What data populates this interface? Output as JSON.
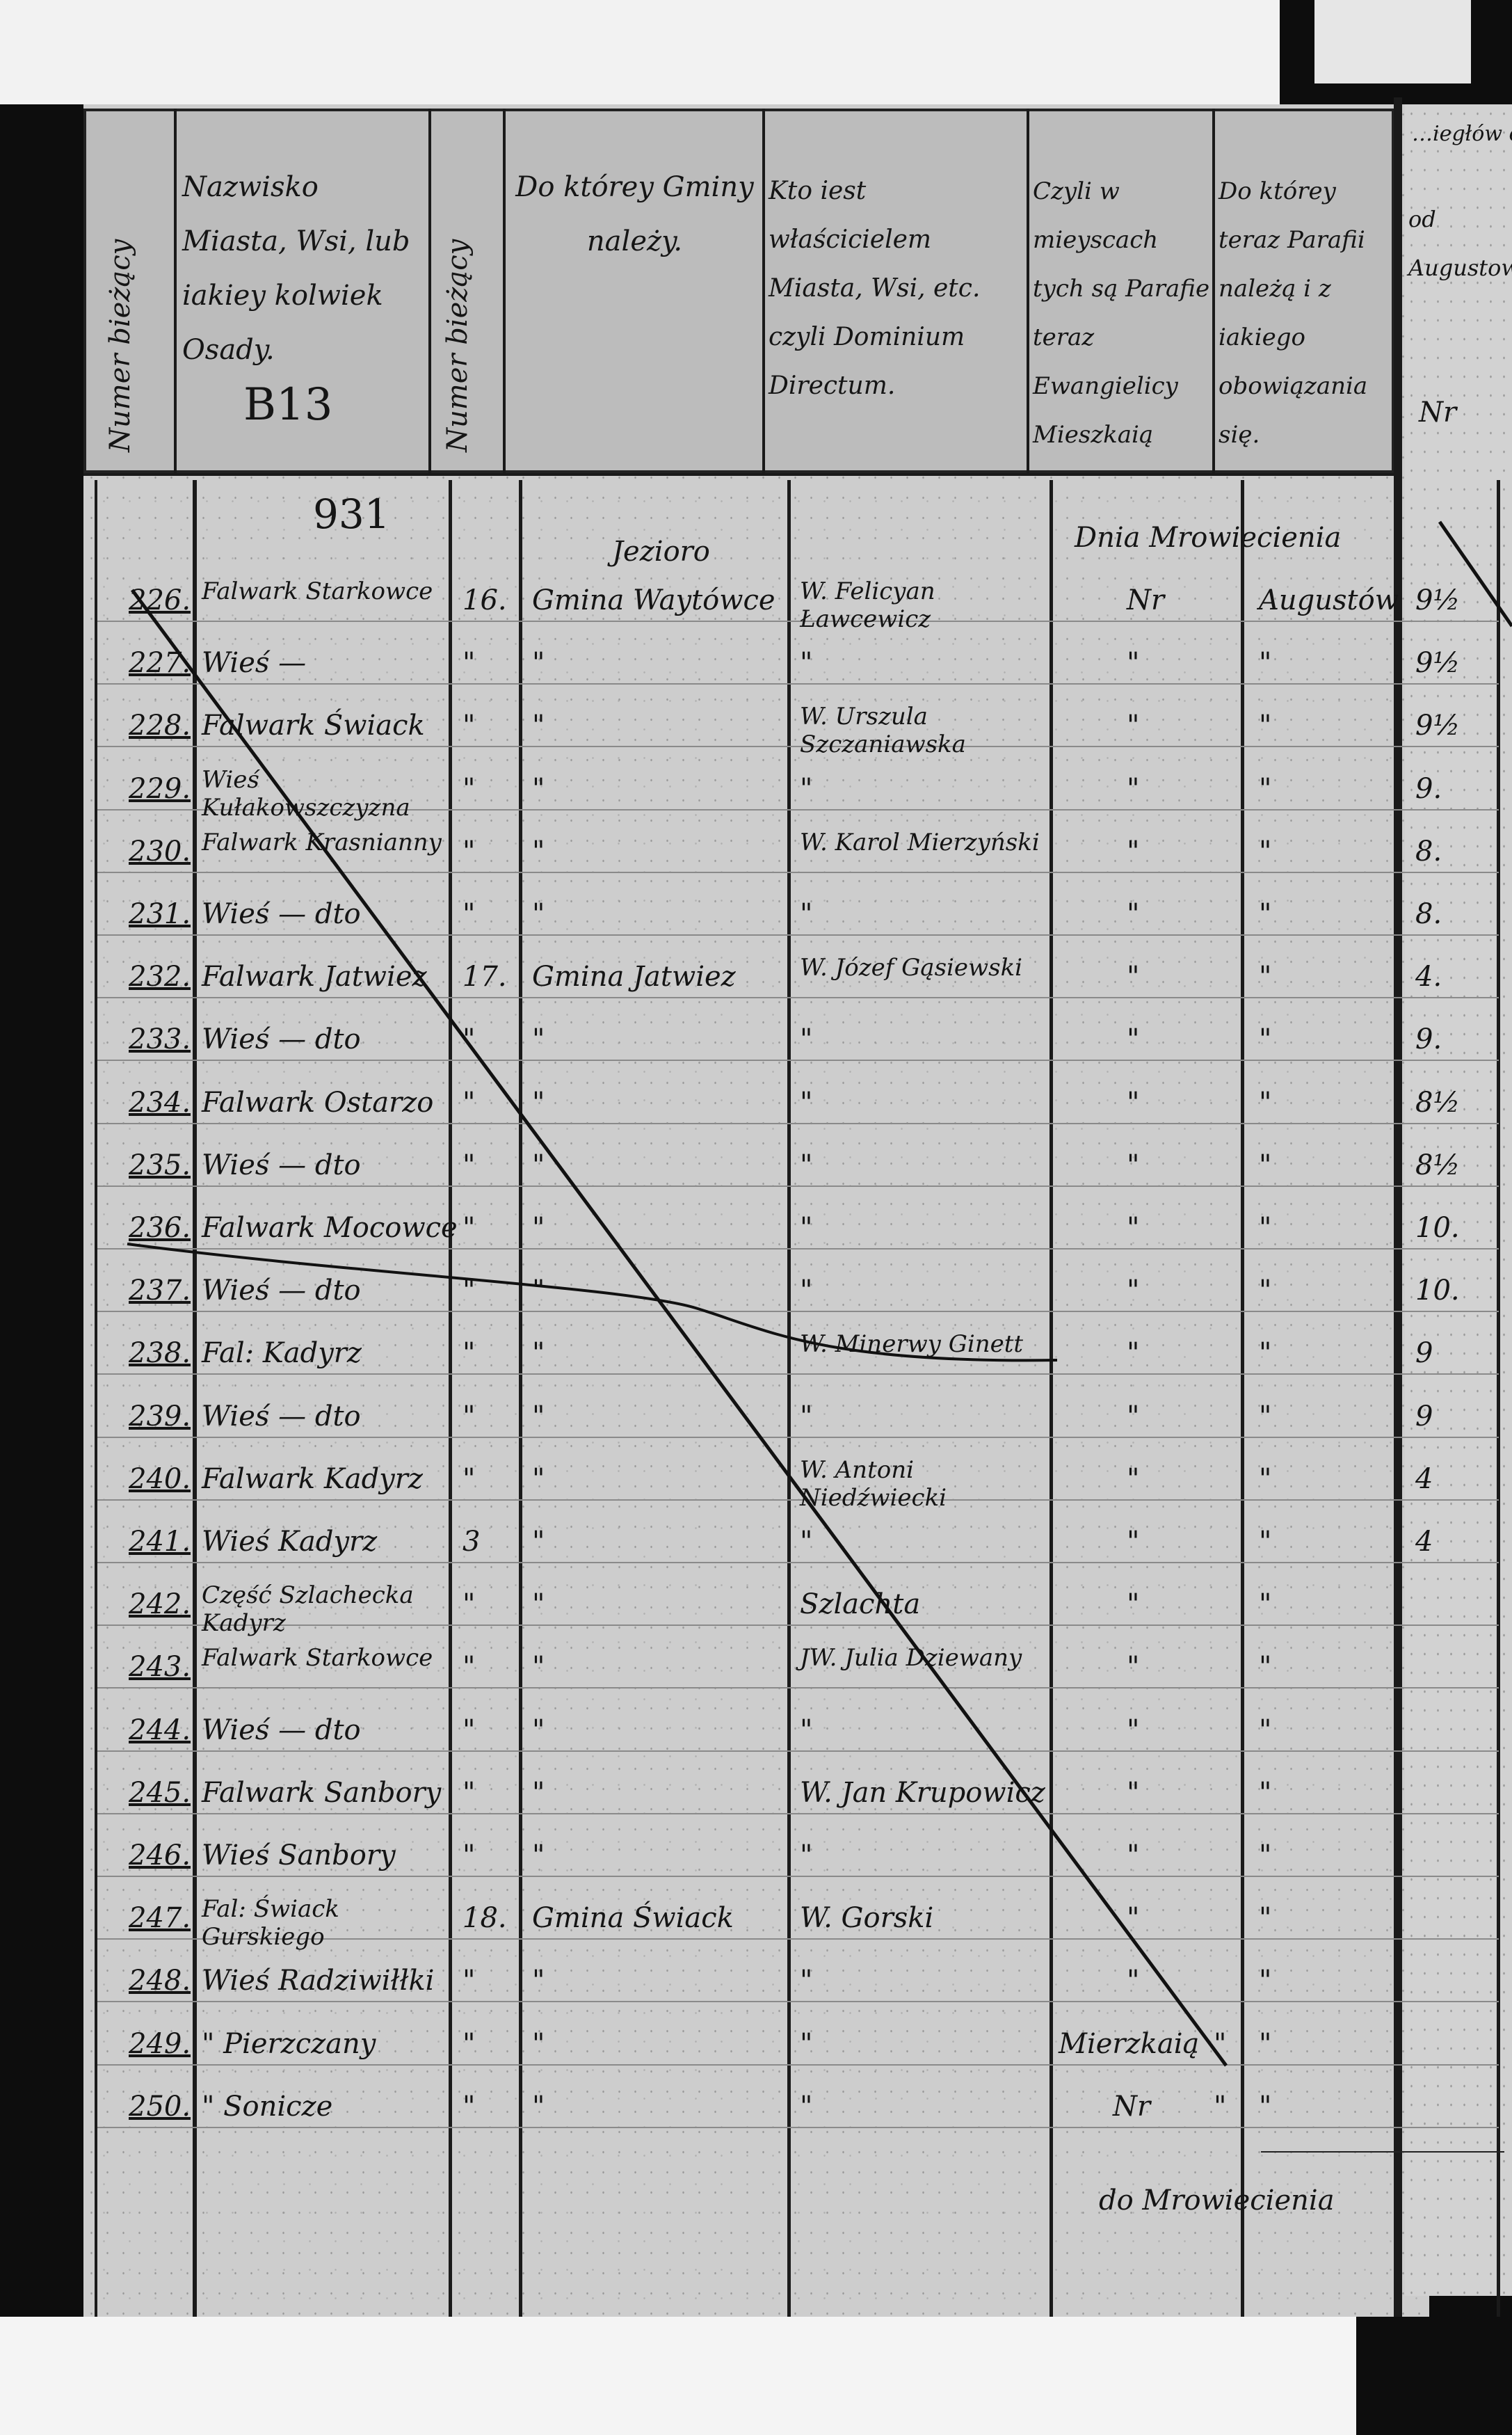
{
  "header": {
    "col_number": "Numer bieżący",
    "col_place": "Nazwisko Miasta, Wsi, lub iakiey kolwiek Osady.",
    "col_number2": "Numer bieżący",
    "col_gmina": "Do którey Gminy należy.",
    "col_owner": "Kto iest właścicielem Miasta, Wsi, etc. czyli Dominium Directum.",
    "col_evangelical": "Czyli w mieyscach tych są Parafie teraz Ewangielicy Mieszkaią",
    "col_parish": "Do którey teraz Parafii należą i z iakiego obowiązania się.",
    "stamp": "B13",
    "right_page_top": "…iegłów ob…",
    "right_page_mid": "od Augustowa",
    "right_page_nr": "Nr"
  },
  "annotations": {
    "page_number": "931",
    "lake_note": "Jezioro",
    "dnia_header": "Dnia Mrowiecienia",
    "bottom_mierzkaia": "Mierzkaią",
    "bottom_nr": "Nr",
    "bottom_do": "do Mrowiecienia"
  },
  "rows": [
    {
      "n": "226.",
      "place": "Falwark Starkowce",
      "c3": "16.",
      "gmina": "Gmina Waytówce",
      "owner": "W. Felicyan Ławcewicz",
      "nr": "Nr",
      "parish": "Augustów",
      "val": "9½"
    },
    {
      "n": "227.",
      "place": "Wieś —",
      "c3": "\"",
      "gmina": "\"",
      "owner": "\"",
      "nr": "\"",
      "parish": "\"",
      "val": "9½"
    },
    {
      "n": "228.",
      "place": "Falwark Świack",
      "c3": "\"",
      "gmina": "\"",
      "owner": "W. Urszula Szczaniawska",
      "nr": "\"",
      "parish": "\"",
      "val": "9½"
    },
    {
      "n": "229.",
      "place": "Wieś Kułakowszczyzna",
      "c3": "\"",
      "gmina": "\"",
      "owner": "\"",
      "nr": "\"",
      "parish": "\"",
      "val": "9."
    },
    {
      "n": "230.",
      "place": "Falwark Krasnianny",
      "c3": "\"",
      "gmina": "\"",
      "owner": "W. Karol Mierzyński",
      "nr": "\"",
      "parish": "\"",
      "val": "8."
    },
    {
      "n": "231.",
      "place": "Wieś — dto",
      "c3": "\"",
      "gmina": "\"",
      "owner": "\"",
      "nr": "\"",
      "parish": "\"",
      "val": "8."
    },
    {
      "n": "232.",
      "place": "Falwark Jatwiez",
      "c3": "17.",
      "gmina": "Gmina Jatwiez",
      "owner": "W. Józef Gąsiewski",
      "nr": "\"",
      "parish": "\"",
      "val": "4."
    },
    {
      "n": "233.",
      "place": "Wieś — dto",
      "c3": "\"",
      "gmina": "\"",
      "owner": "\"",
      "nr": "\"",
      "parish": "\"",
      "val": "9."
    },
    {
      "n": "234.",
      "place": "Falwark Ostarzo",
      "c3": "\"",
      "gmina": "\"",
      "owner": "\"",
      "nr": "\"",
      "parish": "\"",
      "val": "8½"
    },
    {
      "n": "235.",
      "place": "Wieś — dto",
      "c3": "\"",
      "gmina": "\"",
      "owner": "\"",
      "nr": "\"",
      "parish": "\"",
      "val": "8½"
    },
    {
      "n": "236.",
      "place": "Falwark Mocowce",
      "c3": "\"",
      "gmina": "\"",
      "owner": "\"",
      "nr": "\"",
      "parish": "\"",
      "val": "10."
    },
    {
      "n": "237.",
      "place": "Wieś — dto",
      "c3": "\"",
      "gmina": "\"",
      "owner": "\"",
      "nr": "\"",
      "parish": "\"",
      "val": "10."
    },
    {
      "n": "238.",
      "place": "Fal: Kadyrz",
      "c3": "\"",
      "gmina": "\"",
      "owner": "W. Minerwy Ginett",
      "nr": "\"",
      "parish": "\"",
      "val": "9"
    },
    {
      "n": "239.",
      "place": "Wieś — dto",
      "c3": "\"",
      "gmina": "\"",
      "owner": "\"",
      "nr": "\"",
      "parish": "\"",
      "val": "9"
    },
    {
      "n": "240.",
      "place": "Falwark Kadyrz",
      "c3": "\"",
      "gmina": "\"",
      "owner": "W. Antoni Niedźwiecki",
      "nr": "\"",
      "parish": "\"",
      "val": "4"
    },
    {
      "n": "241.",
      "place": "Wieś Kadyrz",
      "c3": "3",
      "gmina": "\"",
      "owner": "\"",
      "nr": "\"",
      "parish": "\"",
      "val": "4"
    },
    {
      "n": "242.",
      "place": "Część Szlachecka Kadyrz",
      "c3": "\"",
      "gmina": "\"",
      "owner": "Szlachta",
      "nr": "\"",
      "parish": "\"",
      "val": ""
    },
    {
      "n": "243.",
      "place": "Falwark Starkowce",
      "c3": "\"",
      "gmina": "\"",
      "owner": "JW. Julia Dziewany",
      "nr": "\"",
      "parish": "\"",
      "val": ""
    },
    {
      "n": "244.",
      "place": "Wieś — dto",
      "c3": "\"",
      "gmina": "\"",
      "owner": "\"",
      "nr": "\"",
      "parish": "\"",
      "val": ""
    },
    {
      "n": "245.",
      "place": "Falwark Sanbory",
      "c3": "\"",
      "gmina": "\"",
      "owner": "W. Jan Krupowicz",
      "nr": "\"",
      "parish": "\"",
      "val": ""
    },
    {
      "n": "246.",
      "place": "Wieś Sanbory",
      "c3": "\"",
      "gmina": "\"",
      "owner": "\"",
      "nr": "\"",
      "parish": "\"",
      "val": ""
    },
    {
      "n": "247.",
      "place": "Fal: Świack Gurskiego",
      "c3": "18.",
      "gmina": "Gmina Świack",
      "owner": "W. Gorski",
      "nr": "\"",
      "parish": "\"",
      "val": ""
    },
    {
      "n": "248.",
      "place": "Wieś Radziwiłłki",
      "c3": "\"",
      "gmina": "\"",
      "owner": "\"",
      "nr": "\"",
      "parish": "\"",
      "val": ""
    },
    {
      "n": "249.",
      "place": "\" Pierzczany",
      "c3": "\"",
      "gmina": "\"",
      "owner": "\"",
      "nr": "\"",
      "parish": "\"",
      "val": ""
    },
    {
      "n": "250.",
      "place": "\" Sonicze",
      "c3": "\"",
      "gmina": "\"",
      "owner": "\"",
      "nr": "\"",
      "parish": "\"",
      "val": ""
    }
  ]
}
